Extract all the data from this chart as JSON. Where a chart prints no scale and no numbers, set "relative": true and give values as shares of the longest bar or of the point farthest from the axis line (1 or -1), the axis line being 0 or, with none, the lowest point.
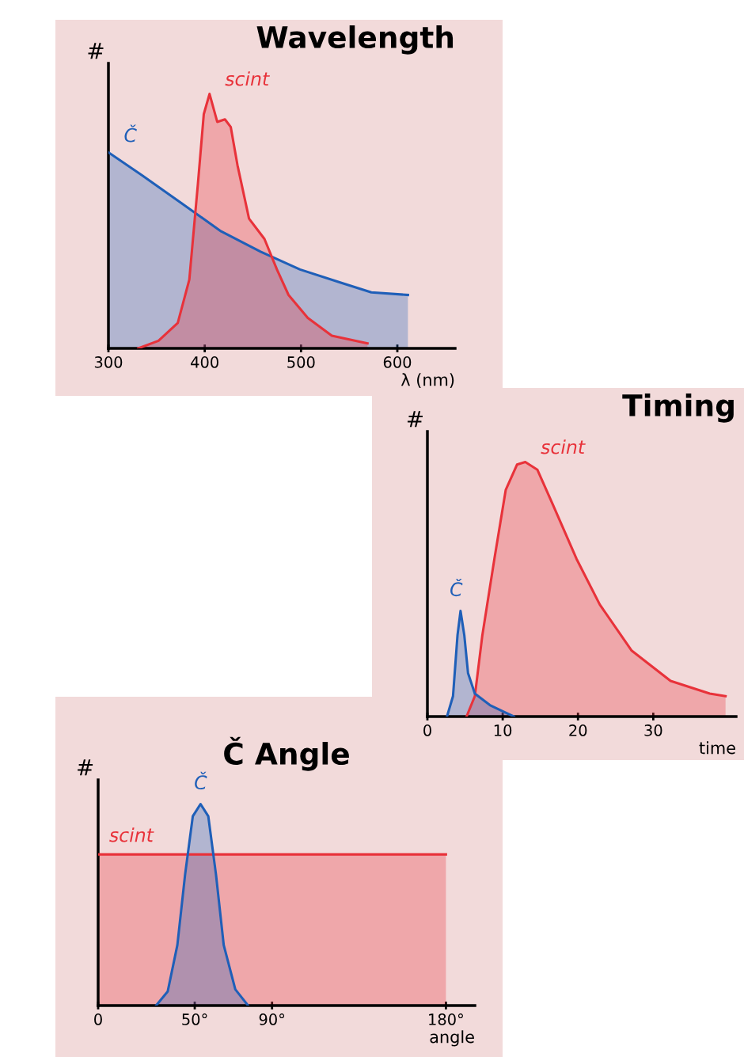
{
  "chart_data": [
    {
      "type": "area",
      "title": "Wavelength",
      "xlabel": "λ (nm)",
      "ylabel": "#",
      "relative": true,
      "xlim": [
        300,
        660
      ],
      "xticks": [
        300,
        400,
        500,
        600
      ],
      "grid": false,
      "series": [
        {
          "name": "Č",
          "color": "#1f5fb8",
          "x": [
            300,
            335,
            376,
            417,
            458,
            499,
            540,
            573,
            611
          ],
          "values": [
            0.77,
            0.68,
            0.57,
            0.46,
            0.38,
            0.31,
            0.26,
            0.22,
            0.21
          ]
        },
        {
          "name": "scint",
          "color": "#e8323a",
          "x": [
            331,
            352,
            372,
            384,
            393,
            399,
            405,
            413,
            421,
            427,
            434,
            446,
            462,
            475,
            487,
            507,
            532,
            569
          ],
          "values": [
            0,
            0.03,
            0.1,
            0.27,
            0.65,
            0.92,
            1,
            0.89,
            0.9,
            0.87,
            0.72,
            0.51,
            0.43,
            0.31,
            0.21,
            0.12,
            0.05,
            0.02
          ]
        }
      ]
    },
    {
      "type": "area",
      "title": "Timing",
      "xlabel": "time",
      "ylabel": "#",
      "relative": true,
      "xlim": [
        0,
        41
      ],
      "xticks": [
        0,
        10,
        20,
        30
      ],
      "grid": false,
      "series": [
        {
          "name": "scint",
          "color": "#e8323a",
          "x": [
            5.2,
            6.3,
            7.3,
            8.9,
            10.4,
            11.9,
            13,
            14.6,
            16.7,
            19.8,
            22.9,
            27.1,
            32.3,
            37.5,
            39.6
          ],
          "values": [
            0,
            0.08,
            0.32,
            0.62,
            0.89,
            0.99,
            1,
            0.97,
            0.83,
            0.62,
            0.44,
            0.26,
            0.14,
            0.09,
            0.08
          ]
        },
        {
          "name": "Č",
          "color": "#1f5fb8",
          "x": [
            2.6,
            3.4,
            4,
            4.4,
            4.9,
            5.4,
            6.3,
            8.3,
            10.4,
            11.5
          ],
          "values": [
            0,
            0.08,
            0.32,
            0.415,
            0.32,
            0.17,
            0.09,
            0.045,
            0.015,
            0
          ]
        }
      ]
    },
    {
      "type": "area",
      "title": "Č Angle",
      "xlabel": "angle",
      "ylabel": "#",
      "relative": true,
      "xlim": [
        0,
        195
      ],
      "xticks": [
        0,
        {
          "value": 50,
          "label": "50°"
        },
        {
          "value": 90,
          "label": "90°"
        },
        {
          "value": 180,
          "label": "180°"
        }
      ],
      "grid": false,
      "series": [
        {
          "name": "scint",
          "color": "#e8323a",
          "x": [
            0,
            180
          ],
          "values": [
            0.75,
            0.75
          ]
        },
        {
          "name": "Č",
          "color": "#1f5fb8",
          "x": [
            30,
            36,
            41,
            45,
            49,
            53,
            57,
            61,
            65,
            71,
            77.6
          ],
          "values": [
            0,
            0.07,
            0.3,
            0.65,
            0.94,
            1,
            0.94,
            0.65,
            0.3,
            0.08,
            0
          ]
        }
      ]
    }
  ]
}
